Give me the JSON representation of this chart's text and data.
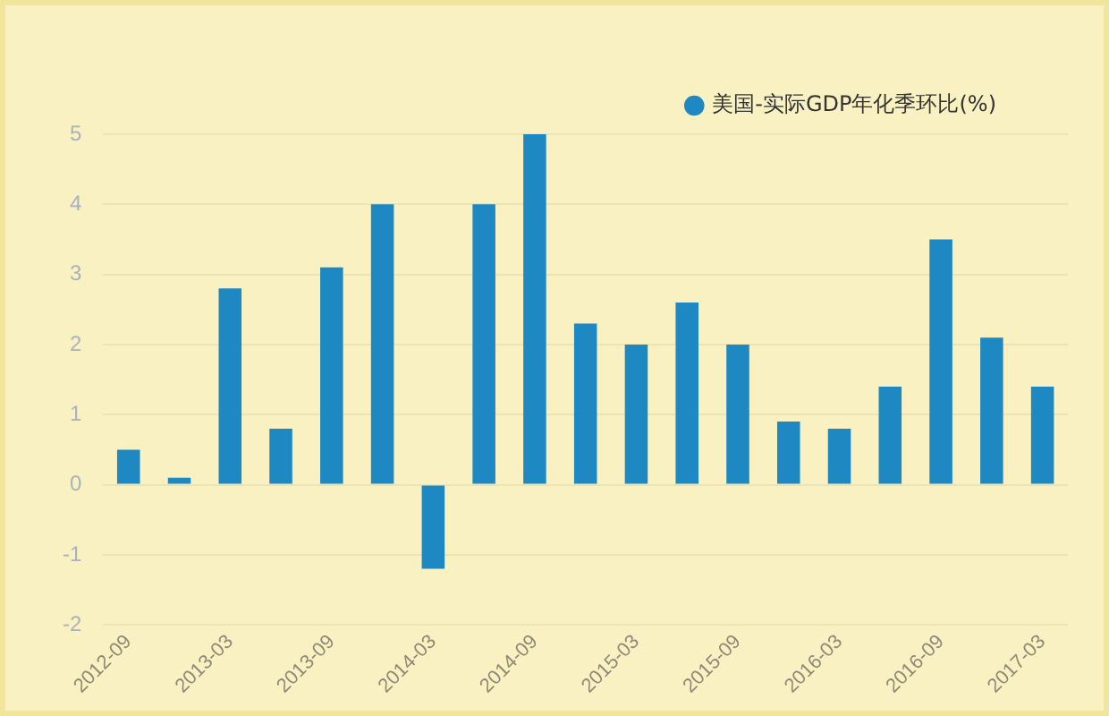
{
  "chart_data": {
    "type": "bar",
    "categories": [
      "2012-09",
      null,
      "2013-03",
      null,
      "2013-09",
      null,
      "2014-03",
      null,
      "2014-09",
      null,
      "2015-03",
      null,
      "2015-09",
      null,
      "2016-03",
      null,
      "2016-09",
      null,
      "2017-03"
    ],
    "series": [
      {
        "name": "美国-实际GDP年化季环比(%)",
        "color": "#1e88c2",
        "values": [
          0.5,
          0.1,
          2.8,
          0.8,
          3.1,
          4.0,
          -1.2,
          4.0,
          5.0,
          2.3,
          2.0,
          2.6,
          2.0,
          0.9,
          0.8,
          1.4,
          3.5,
          2.1,
          1.4
        ]
      }
    ],
    "ylim": [
      -2,
      5
    ],
    "yticks": [
      -2,
      -1,
      0,
      1,
      2,
      3,
      4,
      5
    ],
    "grid": "y",
    "legend": "top right"
  }
}
